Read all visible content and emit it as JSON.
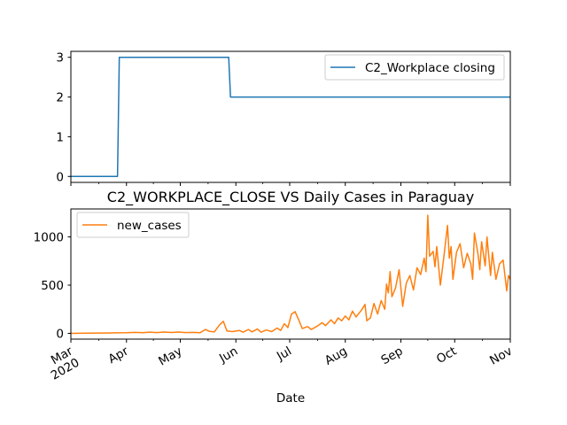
{
  "chart_data": [
    {
      "type": "line",
      "title": "",
      "x_range": [
        "2020-03-01",
        "2020-11-01"
      ],
      "ylim": [
        -0.15,
        3.15
      ],
      "yticks": [
        0,
        1,
        2,
        3
      ],
      "grid": false,
      "legend_position": "upper right",
      "series": [
        {
          "name": "C2_Workplace closing",
          "color": "#1f77b4",
          "points": [
            [
              "2020-03-01",
              0
            ],
            [
              "2020-03-27",
              0
            ],
            [
              "2020-03-28",
              3
            ],
            [
              "2020-05-28",
              3
            ],
            [
              "2020-05-29",
              2
            ],
            [
              "2020-11-01",
              2
            ]
          ]
        }
      ]
    },
    {
      "type": "line",
      "title": "C2_WORKPLACE_CLOSE VS Daily Cases in Paraguay",
      "xlabel": "Date",
      "ylabel": "",
      "x_range": [
        "2020-03-01",
        "2020-11-01"
      ],
      "ylim": [
        -60,
        1290
      ],
      "yticks": [
        0,
        500,
        1000
      ],
      "grid": false,
      "legend_position": "upper left",
      "x_tick_labels": [
        {
          "date": "2020-03-01",
          "lines": [
            "Mar",
            "2020"
          ]
        },
        {
          "date": "2020-04-01",
          "lines": [
            "Apr"
          ]
        },
        {
          "date": "2020-05-01",
          "lines": [
            "May"
          ]
        },
        {
          "date": "2020-06-01",
          "lines": [
            "Jun"
          ]
        },
        {
          "date": "2020-07-01",
          "lines": [
            "Jul"
          ]
        },
        {
          "date": "2020-08-01",
          "lines": [
            "Aug"
          ]
        },
        {
          "date": "2020-09-01",
          "lines": [
            "Sep"
          ]
        },
        {
          "date": "2020-10-01",
          "lines": [
            "Oct"
          ]
        },
        {
          "date": "2020-11-01",
          "lines": [
            "Nov"
          ]
        }
      ],
      "series": [
        {
          "name": "new_cases",
          "color": "#ff7f0e",
          "points": [
            [
              "2020-03-01",
              0
            ],
            [
              "2020-03-10",
              2
            ],
            [
              "2020-03-20",
              3
            ],
            [
              "2020-03-26",
              5
            ],
            [
              "2020-04-01",
              6
            ],
            [
              "2020-04-06",
              10
            ],
            [
              "2020-04-10",
              6
            ],
            [
              "2020-04-14",
              12
            ],
            [
              "2020-04-18",
              8
            ],
            [
              "2020-04-22",
              14
            ],
            [
              "2020-04-26",
              9
            ],
            [
              "2020-04-30",
              14
            ],
            [
              "2020-05-04",
              8
            ],
            [
              "2020-05-08",
              10
            ],
            [
              "2020-05-12",
              6
            ],
            [
              "2020-05-15",
              40
            ],
            [
              "2020-05-17",
              22
            ],
            [
              "2020-05-20",
              15
            ],
            [
              "2020-05-23",
              90
            ],
            [
              "2020-05-25",
              125
            ],
            [
              "2020-05-27",
              25
            ],
            [
              "2020-05-30",
              18
            ],
            [
              "2020-06-03",
              30
            ],
            [
              "2020-06-05",
              12
            ],
            [
              "2020-06-08",
              40
            ],
            [
              "2020-06-10",
              15
            ],
            [
              "2020-06-13",
              45
            ],
            [
              "2020-06-15",
              12
            ],
            [
              "2020-06-18",
              35
            ],
            [
              "2020-06-21",
              18
            ],
            [
              "2020-06-24",
              55
            ],
            [
              "2020-06-26",
              30
            ],
            [
              "2020-06-28",
              100
            ],
            [
              "2020-06-30",
              60
            ],
            [
              "2020-07-02",
              200
            ],
            [
              "2020-07-04",
              225
            ],
            [
              "2020-07-06",
              140
            ],
            [
              "2020-07-08",
              50
            ],
            [
              "2020-07-11",
              70
            ],
            [
              "2020-07-13",
              40
            ],
            [
              "2020-07-16",
              70
            ],
            [
              "2020-07-19",
              110
            ],
            [
              "2020-07-21",
              80
            ],
            [
              "2020-07-24",
              140
            ],
            [
              "2020-07-26",
              100
            ],
            [
              "2020-07-28",
              160
            ],
            [
              "2020-07-30",
              130
            ],
            [
              "2020-08-01",
              180
            ],
            [
              "2020-08-03",
              140
            ],
            [
              "2020-08-05",
              230
            ],
            [
              "2020-08-07",
              170
            ],
            [
              "2020-08-10",
              240
            ],
            [
              "2020-08-12",
              300
            ],
            [
              "2020-08-13",
              130
            ],
            [
              "2020-08-15",
              160
            ],
            [
              "2020-08-17",
              310
            ],
            [
              "2020-08-19",
              200
            ],
            [
              "2020-08-21",
              340
            ],
            [
              "2020-08-23",
              250
            ],
            [
              "2020-08-24",
              510
            ],
            [
              "2020-08-25",
              420
            ],
            [
              "2020-08-26",
              640
            ],
            [
              "2020-08-27",
              380
            ],
            [
              "2020-08-29",
              470
            ],
            [
              "2020-08-31",
              660
            ],
            [
              "2020-09-02",
              280
            ],
            [
              "2020-09-04",
              520
            ],
            [
              "2020-09-06",
              600
            ],
            [
              "2020-09-08",
              450
            ],
            [
              "2020-09-10",
              680
            ],
            [
              "2020-09-12",
              610
            ],
            [
              "2020-09-14",
              780
            ],
            [
              "2020-09-15",
              640
            ],
            [
              "2020-09-16",
              1225
            ],
            [
              "2020-09-17",
              800
            ],
            [
              "2020-09-19",
              850
            ],
            [
              "2020-09-20",
              690
            ],
            [
              "2020-09-21",
              900
            ],
            [
              "2020-09-23",
              500
            ],
            [
              "2020-09-25",
              800
            ],
            [
              "2020-09-27",
              1120
            ],
            [
              "2020-09-28",
              780
            ],
            [
              "2020-09-29",
              900
            ],
            [
              "2020-09-30",
              560
            ],
            [
              "2020-10-02",
              840
            ],
            [
              "2020-10-04",
              930
            ],
            [
              "2020-10-06",
              680
            ],
            [
              "2020-10-08",
              830
            ],
            [
              "2020-10-10",
              720
            ],
            [
              "2020-10-11",
              560
            ],
            [
              "2020-10-12",
              1040
            ],
            [
              "2020-10-14",
              820
            ],
            [
              "2020-10-15",
              660
            ],
            [
              "2020-10-16",
              950
            ],
            [
              "2020-10-18",
              700
            ],
            [
              "2020-10-19",
              1000
            ],
            [
              "2020-10-21",
              600
            ],
            [
              "2020-10-22",
              840
            ],
            [
              "2020-10-24",
              560
            ],
            [
              "2020-10-26",
              720
            ],
            [
              "2020-10-28",
              760
            ],
            [
              "2020-10-30",
              440
            ],
            [
              "2020-10-31",
              600
            ],
            [
              "2020-11-01",
              560
            ]
          ]
        }
      ]
    }
  ]
}
